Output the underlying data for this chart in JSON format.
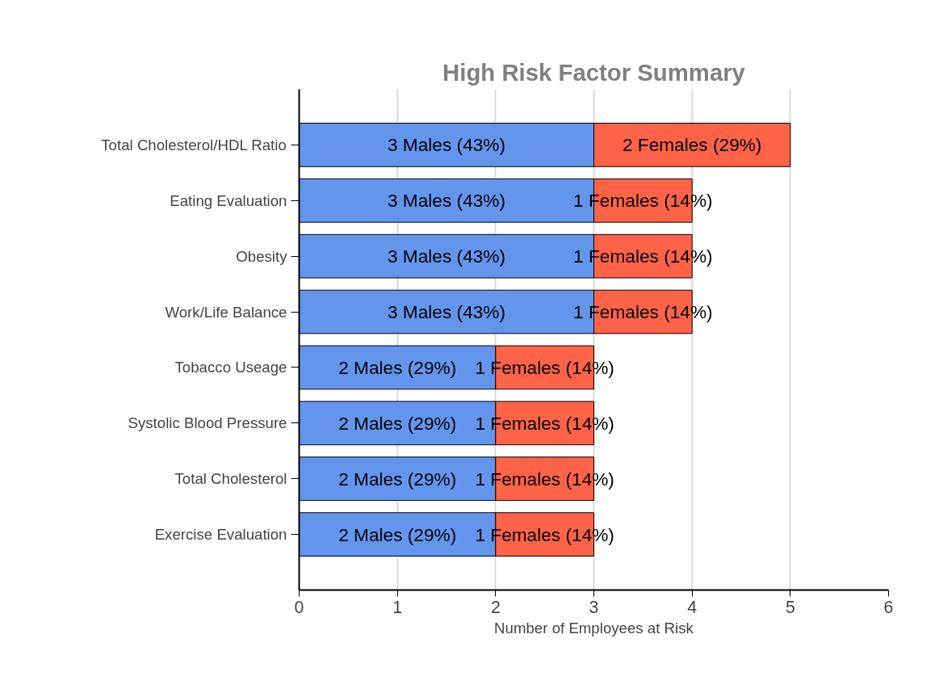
{
  "chart_data": {
    "type": "bar",
    "orientation": "horizontal",
    "stacked": true,
    "title": "High Risk Factor Summary",
    "xlabel": "Number of Employees at Risk",
    "categories": [
      "Total Cholesterol/HDL Ratio",
      "Eating Evaluation",
      "Obesity",
      "Work/Life Balance",
      "Tobacco Useage",
      "Systolic Blood Pressure",
      "Total Cholesterol",
      "Exercise Evaluation"
    ],
    "series": [
      {
        "color": "#6495ed",
        "values": [
          3,
          3,
          3,
          3,
          2,
          2,
          2,
          2
        ],
        "value_labels": [
          "3 Males (43%)",
          "3 Males (43%)",
          "3 Males (43%)",
          "3 Males (43%)",
          "2 Males (29%)",
          "2 Males (29%)",
          "2 Males (29%)",
          "2 Males (29%)"
        ]
      },
      {
        "color": "#ff6347",
        "values": [
          2,
          1,
          1,
          1,
          1,
          1,
          1,
          1
        ],
        "value_labels": [
          "2 Females (29%)",
          "1 Females (14%)",
          "1 Females (14%)",
          "1 Females (14%)",
          "1 Females (14%)",
          "1 Females (14%)",
          "1 Females (14%)",
          "1 Females (14%)"
        ]
      }
    ],
    "xlim": [
      0,
      6
    ],
    "xticks": [
      0,
      1,
      2,
      3,
      4,
      5,
      6
    ],
    "grid": "x"
  }
}
